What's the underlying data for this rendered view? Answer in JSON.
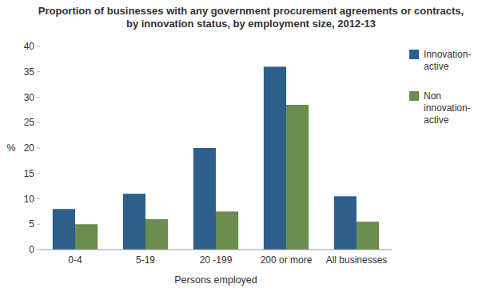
{
  "chart_data": {
    "type": "bar",
    "title": "Proportion of businesses with any government procurement agreements or contracts,\nby innovation status, by employment size, 2012-13",
    "categories": [
      "0-4",
      "5-19",
      "20 -199",
      "200 or more",
      "All businesses"
    ],
    "series": [
      {
        "name": "Innovation-\nactive",
        "color": "#2E5F8A",
        "values": [
          8.0,
          11.0,
          20.0,
          36.0,
          10.5
        ]
      },
      {
        "name": "Non\ninnovation-\nactive",
        "color": "#6B8E4E",
        "values": [
          5.0,
          6.0,
          7.5,
          28.5,
          5.5
        ]
      }
    ],
    "xlabel": "Persons employed",
    "ylabel": "%",
    "ylim": [
      0,
      40
    ],
    "yticks": [
      0,
      5,
      10,
      15,
      20,
      25,
      30,
      35,
      40
    ],
    "grid": false,
    "legend": "upper right"
  }
}
